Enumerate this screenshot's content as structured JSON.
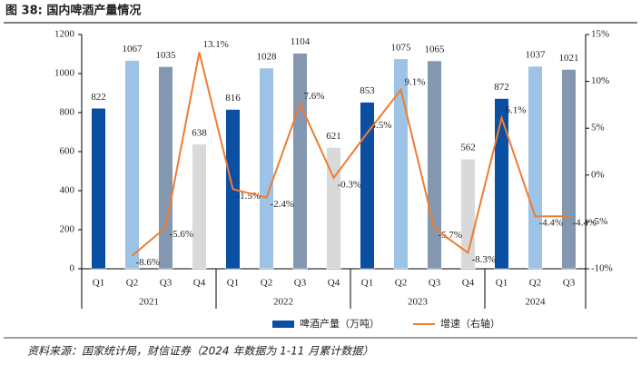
{
  "chart_data": {
    "type": "bar_line",
    "title": "图 38: 国内啤酒产量情况",
    "source": "资料来源：国家统计局，财信证券（2024 年数据为 1-11 月累计数据）",
    "categories": [
      "Q1",
      "Q2",
      "Q3",
      "Q4",
      "Q1",
      "Q2",
      "Q3",
      "Q4",
      "Q1",
      "Q2",
      "Q3",
      "Q4",
      "Q1",
      "Q2",
      "Q3"
    ],
    "groups": [
      {
        "label": "2021",
        "span": 4
      },
      {
        "label": "2022",
        "span": 4
      },
      {
        "label": "2023",
        "span": 4
      },
      {
        "label": "2024",
        "span": 3
      }
    ],
    "series": [
      {
        "name": "啤酒产量（万吨）",
        "type": "bar",
        "color": "#0b4fa2",
        "point_colors": [
          "#0b4fa2",
          "#9dc3e6",
          "#8497b0",
          "#d9d9d9",
          "#0b4fa2",
          "#9dc3e6",
          "#8497b0",
          "#d9d9d9",
          "#0b4fa2",
          "#9dc3e6",
          "#8497b0",
          "#d9d9d9",
          "#0b4fa2",
          "#9dc3e6",
          "#8497b0"
        ],
        "values": [
          822,
          1067,
          1035,
          638,
          816,
          1028,
          1104,
          621,
          853,
          1075,
          1065,
          562,
          872,
          1037,
          1021
        ]
      },
      {
        "name": "增速（右轴）",
        "type": "line",
        "axis": "y2",
        "color": "#ed7d31",
        "values": [
          null,
          -8.6,
          -5.6,
          13.1,
          -1.5,
          -2.4,
          7.6,
          -0.3,
          4.5,
          9.1,
          -5.7,
          -8.3,
          6.1,
          -4.4,
          -4.4
        ],
        "value_labels": [
          null,
          "-8.6%",
          "-5.6%",
          "13.1%",
          "-1.5%",
          "-2.4%",
          "7.6%",
          "-0.3%",
          "4.5%",
          "9.1%",
          "-5.7%",
          "-8.3%",
          "6.1%",
          "-4.4%",
          "-4.4%"
        ]
      }
    ],
    "ylim": [
      0,
      1200
    ],
    "yticks": [
      0,
      200,
      400,
      600,
      800,
      1000,
      1200
    ],
    "y2lim": [
      -10,
      15
    ],
    "y2ticks": [
      {
        "value": -10,
        "label": "-10%"
      },
      {
        "value": -5,
        "label": "-5%"
      },
      {
        "value": 0,
        "label": "0%"
      },
      {
        "value": 5,
        "label": "5%"
      },
      {
        "value": 10,
        "label": "10%"
      },
      {
        "value": 15,
        "label": "15%"
      }
    ],
    "grid": false,
    "legend": "bottom"
  }
}
